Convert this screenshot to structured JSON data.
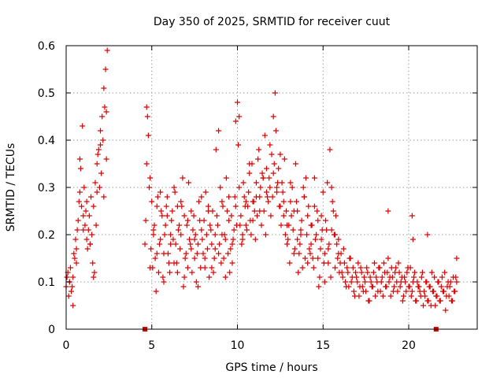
{
  "chart_data": {
    "type": "scatter",
    "title": "Day 350 of 2025, SRMTID for receiver cuut",
    "xlabel": "GPS time / hours",
    "ylabel": "SRMTID / TECUs",
    "xlim": [
      0,
      24
    ],
    "ylim": [
      0,
      0.6
    ],
    "xticks": [
      0,
      5,
      10,
      15,
      20
    ],
    "xtick_labels": [
      "0",
      "5",
      "10",
      "15",
      "20"
    ],
    "yticks": [
      0,
      0.1,
      0.2,
      0.3,
      0.4,
      0.5,
      0.6
    ],
    "ytick_labels": [
      "0",
      "0.1",
      "0.2",
      "0.3",
      "0.4",
      "0.5",
      "0.6"
    ],
    "grid": true,
    "marker": "+",
    "series_color": "#e00000",
    "series": [
      {
        "name": "SRMTID",
        "x": [
          0.0,
          0.1,
          0.2,
          0.3,
          0.4,
          0.5,
          0.6,
          0.7,
          0.8,
          0.9,
          1.0,
          1.1,
          1.2,
          1.3,
          1.4,
          1.5,
          1.6,
          1.7,
          1.8,
          1.9,
          2.0,
          2.1,
          2.2,
          2.3,
          2.4,
          0.05,
          0.15,
          0.25,
          0.35,
          0.45,
          0.55,
          0.65,
          0.75,
          0.85,
          0.95,
          1.05,
          1.15,
          1.25,
          1.35,
          1.45,
          1.55,
          1.65,
          1.75,
          1.85,
          1.95,
          2.05,
          2.15,
          2.25,
          2.35,
          0.2,
          0.4,
          0.6,
          0.8,
          1.0,
          1.2,
          1.4,
          1.6,
          1.8,
          2.0,
          2.2,
          2.35,
          4.6,
          4.7,
          4.8,
          4.9,
          5.0,
          5.1,
          5.2,
          5.3,
          5.4,
          5.5,
          5.6,
          5.7,
          5.8,
          5.9,
          6.0,
          6.1,
          6.2,
          6.3,
          6.4,
          6.5,
          6.6,
          6.7,
          6.8,
          6.9,
          7.0,
          7.1,
          7.2,
          7.3,
          7.4,
          7.5,
          7.6,
          7.7,
          7.8,
          7.9,
          8.0,
          8.1,
          8.2,
          8.3,
          8.4,
          8.5,
          8.6,
          8.7,
          8.8,
          8.9,
          9.0,
          9.1,
          9.2,
          9.3,
          9.4,
          9.5,
          9.6,
          9.7,
          9.8,
          9.9,
          4.65,
          4.75,
          4.85,
          4.95,
          5.05,
          5.15,
          5.25,
          5.35,
          5.45,
          5.55,
          5.65,
          5.75,
          5.85,
          5.95,
          6.05,
          6.15,
          6.25,
          6.35,
          6.45,
          6.55,
          6.65,
          6.75,
          6.85,
          6.95,
          7.05,
          7.15,
          7.25,
          7.35,
          7.45,
          7.55,
          7.65,
          7.75,
          7.85,
          7.95,
          8.05,
          8.15,
          8.25,
          8.35,
          8.45,
          8.55,
          8.65,
          8.75,
          8.85,
          8.95,
          9.05,
          9.15,
          9.25,
          9.35,
          9.45,
          9.55,
          9.65,
          9.75,
          9.85,
          9.95,
          4.7,
          4.9,
          5.1,
          5.3,
          5.5,
          5.7,
          5.9,
          6.1,
          6.3,
          6.5,
          6.7,
          6.9,
          7.1,
          7.3,
          7.5,
          7.7,
          7.9,
          8.1,
          8.3,
          8.5,
          8.7,
          8.9,
          9.1,
          9.3,
          9.5,
          9.7,
          9.9,
          10.0,
          10.1,
          10.2,
          10.3,
          10.4,
          10.5,
          10.6,
          10.7,
          10.8,
          10.9,
          11.0,
          11.1,
          11.2,
          11.3,
          11.4,
          11.5,
          11.6,
          11.7,
          11.8,
          11.9,
          12.0,
          12.1,
          12.2,
          12.3,
          12.4,
          12.5,
          12.6,
          12.7,
          12.8,
          12.9,
          13.0,
          13.1,
          13.2,
          13.3,
          13.4,
          13.5,
          13.6,
          13.7,
          13.8,
          13.9,
          14.0,
          14.1,
          14.2,
          14.3,
          14.4,
          14.5,
          14.6,
          14.7,
          14.8,
          14.9,
          15.0,
          15.1,
          15.2,
          15.3,
          15.4,
          15.5,
          15.6,
          15.7,
          15.8,
          15.9,
          10.05,
          10.15,
          10.25,
          10.35,
          10.45,
          10.55,
          10.65,
          10.75,
          10.85,
          10.95,
          11.05,
          11.15,
          11.25,
          11.35,
          11.45,
          11.55,
          11.65,
          11.75,
          11.85,
          11.95,
          12.05,
          12.15,
          12.25,
          12.35,
          12.45,
          12.55,
          12.65,
          12.75,
          12.85,
          12.95,
          13.05,
          13.15,
          13.25,
          13.35,
          13.45,
          13.55,
          13.65,
          13.75,
          13.85,
          13.95,
          14.05,
          14.15,
          14.25,
          14.35,
          14.45,
          14.55,
          14.65,
          14.75,
          14.85,
          14.95,
          15.05,
          15.15,
          15.25,
          15.35,
          15.45,
          15.55,
          15.65,
          15.75,
          15.85,
          15.95,
          10.1,
          10.3,
          10.5,
          10.7,
          10.9,
          11.1,
          11.3,
          11.5,
          11.7,
          11.9,
          12.1,
          12.3,
          12.5,
          12.7,
          12.9,
          13.1,
          13.3,
          13.5,
          13.7,
          13.9,
          14.1,
          14.3,
          14.5,
          14.7,
          14.9,
          15.1,
          15.3,
          15.5,
          15.7,
          15.9,
          16.0,
          16.1,
          16.2,
          16.3,
          16.4,
          16.5,
          16.6,
          16.7,
          16.8,
          16.9,
          17.0,
          17.1,
          17.2,
          17.3,
          17.4,
          17.5,
          17.6,
          17.7,
          17.8,
          17.9,
          18.0,
          18.1,
          18.2,
          18.3,
          18.4,
          18.5,
          18.6,
          18.7,
          18.8,
          18.9,
          19.0,
          19.1,
          19.2,
          19.3,
          19.4,
          19.5,
          19.6,
          19.7,
          19.8,
          19.9,
          20.0,
          20.1,
          20.2,
          20.3,
          20.4,
          20.5,
          20.6,
          20.7,
          20.8,
          20.9,
          21.0,
          21.1,
          21.2,
          21.3,
          21.4,
          21.5,
          21.6,
          21.7,
          21.8,
          21.9,
          22.0,
          22.1,
          22.2,
          22.3,
          22.4,
          22.5,
          22.6,
          22.7,
          22.8,
          16.05,
          16.15,
          16.25,
          16.35,
          16.45,
          16.55,
          16.65,
          16.75,
          16.85,
          16.95,
          17.05,
          17.15,
          17.25,
          17.35,
          17.45,
          17.55,
          17.65,
          17.75,
          17.85,
          17.95,
          18.05,
          18.15,
          18.25,
          18.35,
          18.45,
          18.55,
          18.65,
          18.75,
          18.85,
          18.95,
          19.05,
          19.15,
          19.25,
          19.35,
          19.45,
          19.55,
          19.65,
          19.75,
          19.85,
          19.95,
          20.05,
          20.15,
          20.25,
          20.35,
          20.45,
          20.55,
          20.65,
          20.75,
          20.85,
          20.95,
          21.05,
          21.15,
          21.25,
          21.35,
          21.45,
          21.55,
          21.65,
          21.75,
          21.85,
          21.95,
          22.05,
          22.15,
          22.25,
          22.35,
          22.45,
          22.55,
          22.65,
          22.75,
          18.8,
          20.2,
          20.25,
          21.1,
          22.8
        ],
        "y": [
          0.09,
          0.12,
          0.1,
          0.08,
          0.11,
          0.15,
          0.17,
          0.23,
          0.29,
          0.26,
          0.24,
          0.22,
          0.19,
          0.21,
          0.18,
          0.2,
          0.26,
          0.31,
          0.35,
          0.38,
          0.42,
          0.45,
          0.51,
          0.55,
          0.59,
          0.11,
          0.07,
          0.13,
          0.09,
          0.16,
          0.19,
          0.21,
          0.27,
          0.34,
          0.43,
          0.3,
          0.25,
          0.17,
          0.24,
          0.28,
          0.14,
          0.12,
          0.22,
          0.37,
          0.3,
          0.33,
          0.4,
          0.47,
          0.36,
          0.1,
          0.05,
          0.14,
          0.36,
          0.21,
          0.27,
          0.18,
          0.11,
          0.29,
          0.39,
          0.28,
          0.46,
          0.18,
          0.47,
          0.41,
          0.32,
          0.27,
          0.2,
          0.15,
          0.26,
          0.12,
          0.19,
          0.24,
          0.16,
          0.22,
          0.28,
          0.14,
          0.2,
          0.25,
          0.3,
          0.18,
          0.12,
          0.22,
          0.27,
          0.32,
          0.24,
          0.16,
          0.13,
          0.19,
          0.25,
          0.21,
          0.15,
          0.1,
          0.18,
          0.23,
          0.28,
          0.16,
          0.13,
          0.2,
          0.26,
          0.22,
          0.18,
          0.12,
          0.17,
          0.24,
          0.42,
          0.3,
          0.2,
          0.15,
          0.19,
          0.25,
          0.28,
          0.17,
          0.14,
          0.21,
          0.26,
          0.23,
          0.45,
          0.3,
          0.17,
          0.13,
          0.22,
          0.08,
          0.28,
          0.18,
          0.25,
          0.11,
          0.2,
          0.26,
          0.16,
          0.12,
          0.23,
          0.19,
          0.29,
          0.14,
          0.21,
          0.17,
          0.26,
          0.09,
          0.15,
          0.22,
          0.31,
          0.18,
          0.12,
          0.24,
          0.2,
          0.16,
          0.27,
          0.13,
          0.19,
          0.23,
          0.29,
          0.17,
          0.11,
          0.21,
          0.25,
          0.15,
          0.38,
          0.22,
          0.18,
          0.14,
          0.26,
          0.2,
          0.32,
          0.16,
          0.12,
          0.24,
          0.19,
          0.28,
          0.22,
          0.35,
          0.13,
          0.21,
          0.16,
          0.29,
          0.1,
          0.24,
          0.18,
          0.14,
          0.26,
          0.2,
          0.11,
          0.23,
          0.17,
          0.19,
          0.09,
          0.21,
          0.15,
          0.25,
          0.13,
          0.2,
          0.16,
          0.27,
          0.11,
          0.23,
          0.18,
          0.44,
          0.48,
          0.3,
          0.24,
          0.19,
          0.28,
          0.22,
          0.26,
          0.33,
          0.2,
          0.27,
          0.25,
          0.31,
          0.36,
          0.28,
          0.22,
          0.32,
          0.41,
          0.34,
          0.27,
          0.3,
          0.37,
          0.45,
          0.5,
          0.29,
          0.34,
          0.26,
          0.31,
          0.24,
          0.2,
          0.18,
          0.22,
          0.27,
          0.3,
          0.25,
          0.35,
          0.19,
          0.16,
          0.21,
          0.13,
          0.28,
          0.32,
          0.24,
          0.17,
          0.22,
          0.15,
          0.26,
          0.2,
          0.23,
          0.11,
          0.19,
          0.29,
          0.16,
          0.21,
          0.14,
          0.38,
          0.3,
          0.25,
          0.2,
          0.18,
          0.16,
          0.39,
          0.22,
          0.18,
          0.31,
          0.26,
          0.21,
          0.29,
          0.23,
          0.35,
          0.27,
          0.19,
          0.24,
          0.38,
          0.3,
          0.33,
          0.25,
          0.2,
          0.28,
          0.32,
          0.24,
          0.28,
          0.35,
          0.42,
          0.31,
          0.26,
          0.22,
          0.29,
          0.36,
          0.25,
          0.19,
          0.14,
          0.24,
          0.21,
          0.17,
          0.27,
          0.12,
          0.18,
          0.23,
          0.3,
          0.15,
          0.2,
          0.26,
          0.16,
          0.22,
          0.13,
          0.19,
          0.25,
          0.09,
          0.17,
          0.21,
          0.14,
          0.23,
          0.31,
          0.18,
          0.11,
          0.27,
          0.2,
          0.24,
          0.15,
          0.12,
          0.45,
          0.2,
          0.27,
          0.35,
          0.23,
          0.28,
          0.25,
          0.32,
          0.29,
          0.39,
          0.33,
          0.3,
          0.37,
          0.27,
          0.22,
          0.31,
          0.16,
          0.25,
          0.2,
          0.28,
          0.14,
          0.18,
          0.32,
          0.15,
          0.24,
          0.1,
          0.17,
          0.21,
          0.13,
          0.19,
          0.14,
          0.12,
          0.17,
          0.1,
          0.13,
          0.09,
          0.15,
          0.11,
          0.08,
          0.12,
          0.1,
          0.07,
          0.13,
          0.09,
          0.11,
          0.08,
          0.12,
          0.06,
          0.1,
          0.09,
          0.14,
          0.11,
          0.08,
          0.13,
          0.1,
          0.07,
          0.12,
          0.09,
          0.15,
          0.11,
          0.13,
          0.08,
          0.12,
          0.1,
          0.14,
          0.09,
          0.11,
          0.07,
          0.1,
          0.12,
          0.09,
          0.13,
          0.08,
          0.11,
          0.06,
          0.1,
          0.09,
          0.07,
          0.12,
          0.08,
          0.1,
          0.06,
          0.09,
          0.05,
          0.08,
          0.11,
          0.07,
          0.1,
          0.06,
          0.09,
          0.08,
          0.12,
          0.07,
          0.1,
          0.09,
          0.06,
          0.11,
          0.08,
          0.1,
          0.16,
          0.11,
          0.14,
          0.09,
          0.12,
          0.15,
          0.1,
          0.13,
          0.07,
          0.11,
          0.14,
          0.09,
          0.12,
          0.08,
          0.1,
          0.13,
          0.06,
          0.11,
          0.09,
          0.12,
          0.07,
          0.1,
          0.13,
          0.08,
          0.11,
          0.14,
          0.09,
          0.12,
          0.1,
          0.07,
          0.11,
          0.09,
          0.13,
          0.08,
          0.12,
          0.1,
          0.06,
          0.11,
          0.08,
          0.13,
          0.09,
          0.07,
          0.1,
          0.12,
          0.06,
          0.09,
          0.08,
          0.11,
          0.05,
          0.07,
          0.1,
          0.06,
          0.09,
          0.12,
          0.08,
          0.05,
          0.07,
          0.1,
          0.06,
          0.11,
          0.08,
          0.04,
          0.09,
          0.07,
          0.1,
          0.06,
          0.08,
          0.11,
          0.25,
          0.24,
          0.19,
          0.2,
          0.15
        ]
      }
    ],
    "axis_markers": [
      4.6,
      21.6
    ]
  }
}
